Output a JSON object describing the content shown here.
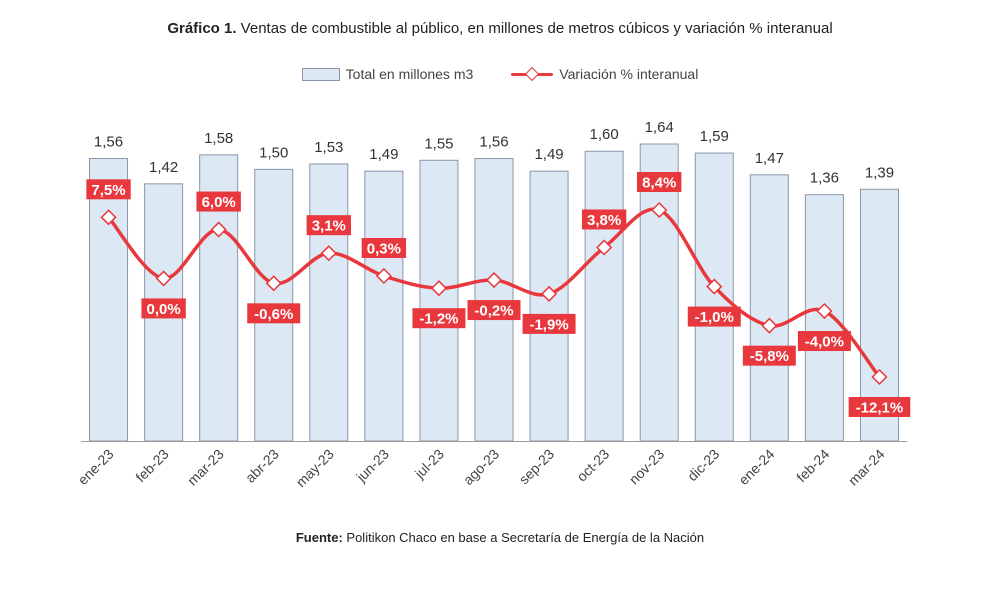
{
  "header": {
    "title_bold": "Gráfico 1.",
    "title_rest": " Ventas de combustible al público, en millones de metros cúbicos y variación % interanual"
  },
  "legend": {
    "bar_label": "Total en millones m3",
    "line_label": "Variación % interanual"
  },
  "footer": {
    "source_bold": "Fuente:",
    "source_rest": " Politikon Chaco en base a Secretaría de Energía de la Nación"
  },
  "colors": {
    "bar_fill": "#dde8f5",
    "bar_stroke": "#8a97a8",
    "line": "#e8383d",
    "label_bg": "#e8383d"
  },
  "chart_data": {
    "type": "bar",
    "categories": [
      "ene-23",
      "feb-23",
      "mar-23",
      "abr-23",
      "may-23",
      "jun-23",
      "jul-23",
      "ago-23",
      "sep-23",
      "oct-23",
      "nov-23",
      "dic-23",
      "ene-24",
      "feb-24",
      "mar-24"
    ],
    "series": [
      {
        "name": "Total en millones m3",
        "type": "bar",
        "values": [
          1.56,
          1.42,
          1.58,
          1.5,
          1.53,
          1.49,
          1.55,
          1.56,
          1.49,
          1.6,
          1.64,
          1.59,
          1.47,
          1.36,
          1.39
        ],
        "labels": [
          "1,56",
          "1,42",
          "1,58",
          "1,50",
          "1,53",
          "1,49",
          "1,55",
          "1,56",
          "1,49",
          "1,60",
          "1,64",
          "1,59",
          "1,47",
          "1,36",
          "1,39"
        ]
      },
      {
        "name": "Variación % interanual",
        "type": "line",
        "values": [
          7.5,
          0.0,
          6.0,
          -0.6,
          3.1,
          0.3,
          -1.2,
          -0.2,
          -1.9,
          3.8,
          8.4,
          -1.0,
          -5.8,
          -4.0,
          -12.1
        ],
        "labels": [
          "7,5%",
          "0,0%",
          "6,0%",
          "-0,6%",
          "3,1%",
          "0,3%",
          "-1,2%",
          "-0,2%",
          "-1,9%",
          "3,8%",
          "8,4%",
          "-1,0%",
          "-5,8%",
          "-4,0%",
          "-12,1%"
        ]
      }
    ],
    "label_positions": [
      "above",
      "below",
      "above",
      "below",
      "above",
      "above",
      "below",
      "below",
      "below",
      "above",
      "above",
      "below",
      "below",
      "below",
      "below"
    ],
    "bar_axis_range": [
      0,
      1.64
    ],
    "line_axis_range": [
      -12.1,
      8.4
    ],
    "grid": false,
    "legend_position": "top"
  }
}
